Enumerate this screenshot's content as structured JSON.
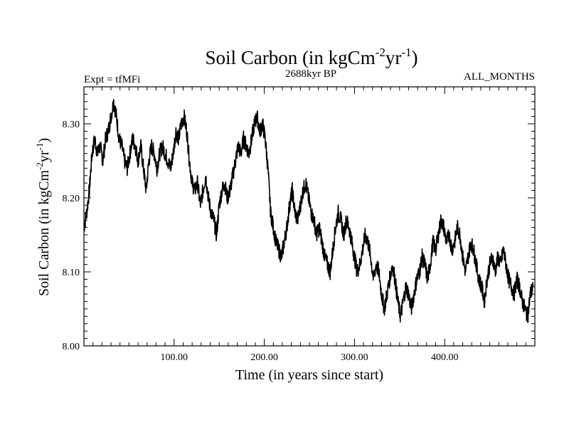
{
  "colors": {
    "line": "#000000",
    "background": "#ffffff"
  },
  "chart_data": {
    "type": "line",
    "title": "Soil Carbon (in kgCm",
    "title_sup1": "-2",
    "title_mid": "yr",
    "title_sup2": "-1",
    "title_end": ")",
    "subtitle_left": "Expt = tfMFi",
    "subtitle_center": "2688kyr BP",
    "subtitle_right": "ALL_MONTHS",
    "xlabel": "Time (in years since start)",
    "ylabel_main": "Soil Carbon (in kgCm",
    "ylabel_sup1": "-2",
    "ylabel_mid": "yr",
    "ylabel_sup2": "-1",
    "ylabel_end": ")",
    "xlim": [
      0,
      500
    ],
    "ylim": [
      8.0,
      8.35
    ],
    "xticks": [
      100,
      200,
      300,
      400
    ],
    "xtick_labels": [
      "100.00",
      "200.00",
      "300.00",
      "400.00"
    ],
    "yticks": [
      8.0,
      8.1,
      8.2,
      8.3
    ],
    "ytick_labels": [
      "8.00",
      "8.10",
      "8.20",
      "8.30"
    ],
    "series": [
      {
        "name": "Soil Carbon",
        "x": [
          0,
          3,
          6,
          9,
          12,
          15,
          18,
          21,
          24,
          27,
          30,
          33,
          36,
          39,
          42,
          45,
          48,
          51,
          54,
          57,
          60,
          63,
          66,
          69,
          72,
          75,
          78,
          81,
          84,
          87,
          90,
          93,
          96,
          99,
          102,
          105,
          108,
          111,
          114,
          117,
          120,
          123,
          126,
          129,
          132,
          135,
          138,
          141,
          144,
          147,
          150,
          153,
          156,
          159,
          162,
          165,
          168,
          171,
          174,
          177,
          180,
          183,
          186,
          189,
          192,
          195,
          198,
          201,
          204,
          207,
          210,
          213,
          216,
          219,
          222,
          225,
          228,
          231,
          234,
          237,
          240,
          243,
          246,
          249,
          252,
          255,
          258,
          261,
          264,
          267,
          270,
          273,
          276,
          279,
          282,
          285,
          288,
          291,
          294,
          297,
          300,
          303,
          306,
          309,
          312,
          315,
          318,
          321,
          324,
          327,
          330,
          333,
          336,
          339,
          342,
          345,
          348,
          351,
          354,
          357,
          360,
          363,
          366,
          369,
          372,
          375,
          378,
          381,
          384,
          387,
          390,
          393,
          396,
          399,
          402,
          405,
          408,
          411,
          414,
          417,
          420,
          423,
          426,
          429,
          432,
          435,
          438,
          441,
          444,
          447,
          450,
          453,
          456,
          459,
          462,
          465,
          468,
          471,
          474,
          477,
          480,
          483,
          486,
          489,
          492,
          495,
          498
        ],
        "values": [
          8.16,
          8.18,
          8.21,
          8.26,
          8.28,
          8.26,
          8.27,
          8.25,
          8.28,
          8.29,
          8.31,
          8.33,
          8.31,
          8.28,
          8.27,
          8.25,
          8.24,
          8.26,
          8.28,
          8.27,
          8.25,
          8.27,
          8.24,
          8.21,
          8.25,
          8.27,
          8.26,
          8.24,
          8.26,
          8.27,
          8.26,
          8.25,
          8.24,
          8.26,
          8.29,
          8.28,
          8.3,
          8.31,
          8.29,
          8.25,
          8.22,
          8.21,
          8.22,
          8.19,
          8.21,
          8.23,
          8.2,
          8.18,
          8.17,
          8.15,
          8.19,
          8.21,
          8.22,
          8.2,
          8.21,
          8.23,
          8.25,
          8.27,
          8.26,
          8.28,
          8.27,
          8.26,
          8.28,
          8.3,
          8.31,
          8.29,
          8.3,
          8.28,
          8.24,
          8.18,
          8.16,
          8.14,
          8.13,
          8.12,
          8.14,
          8.16,
          8.19,
          8.21,
          8.18,
          8.17,
          8.19,
          8.21,
          8.22,
          8.2,
          8.18,
          8.17,
          8.15,
          8.16,
          8.14,
          8.12,
          8.11,
          8.1,
          8.13,
          8.16,
          8.18,
          8.17,
          8.15,
          8.17,
          8.16,
          8.14,
          8.12,
          8.1,
          8.11,
          8.13,
          8.15,
          8.14,
          8.12,
          8.09,
          8.11,
          8.1,
          8.07,
          8.05,
          8.07,
          8.09,
          8.11,
          8.09,
          8.06,
          8.04,
          8.06,
          8.08,
          8.07,
          8.05,
          8.07,
          8.09,
          8.1,
          8.12,
          8.11,
          8.09,
          8.11,
          8.14,
          8.13,
          8.15,
          8.17,
          8.16,
          8.14,
          8.15,
          8.13,
          8.14,
          8.16,
          8.15,
          8.12,
          8.1,
          8.12,
          8.14,
          8.13,
          8.11,
          8.09,
          8.08,
          8.06,
          8.09,
          8.11,
          8.12,
          8.1,
          8.12,
          8.11,
          8.13,
          8.11,
          8.09,
          8.08,
          8.07,
          8.09,
          8.08,
          8.06,
          8.05,
          8.04,
          8.07,
          8.08
        ]
      }
    ]
  }
}
